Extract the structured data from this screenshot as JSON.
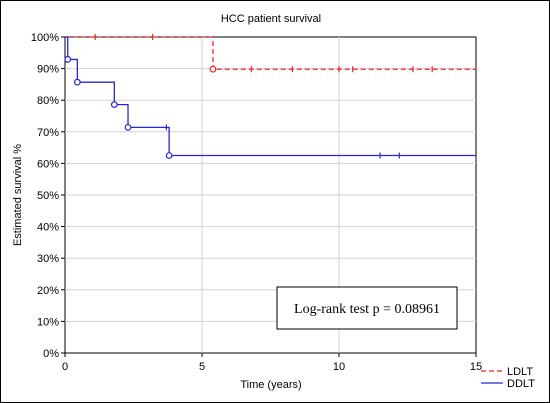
{
  "chart_data": {
    "type": "line",
    "title": "HCC patient survival",
    "xlabel": "Time (years)",
    "ylabel": "Estimated survival %",
    "xlim": [
      0,
      15
    ],
    "ylim": [
      0,
      100
    ],
    "x_ticks": [
      0,
      5,
      10,
      15
    ],
    "x_tick_labels": [
      "0",
      "5",
      "10",
      "15"
    ],
    "y_ticks": [
      0,
      10,
      20,
      30,
      40,
      50,
      60,
      70,
      80,
      90,
      100
    ],
    "y_tick_labels": [
      "0%",
      "10%",
      "20%",
      "30%",
      "40%",
      "50%",
      "60%",
      "70%",
      "80%",
      "90%",
      "100%"
    ],
    "grid": true,
    "legend_position": "bottom-right",
    "annotation": "Log-rank test p = 0.08961",
    "series": [
      {
        "name": "LDLT",
        "color": "#e8242a",
        "dash": "dashed",
        "x": [
          0,
          5.4,
          5.4,
          15
        ],
        "y": [
          100,
          100,
          89.8,
          89.8
        ],
        "events": [
          {
            "x": 5.4,
            "y": 89.8
          }
        ],
        "censored": [
          {
            "x": 1.1,
            "y": 100
          },
          {
            "x": 3.2,
            "y": 100
          },
          {
            "x": 6.8,
            "y": 89.8
          },
          {
            "x": 8.3,
            "y": 89.8
          },
          {
            "x": 10.0,
            "y": 89.8
          },
          {
            "x": 10.5,
            "y": 89.8
          },
          {
            "x": 12.7,
            "y": 89.8
          },
          {
            "x": 13.4,
            "y": 89.8
          }
        ]
      },
      {
        "name": "DDLT",
        "color": "#2828d2",
        "dash": "solid",
        "x": [
          0,
          0.1,
          0.1,
          0.45,
          0.45,
          1.8,
          1.8,
          2.3,
          2.3,
          3.8,
          3.8,
          15
        ],
        "y": [
          100,
          100,
          92.9,
          92.9,
          85.7,
          85.7,
          78.6,
          78.6,
          71.4,
          71.4,
          62.5,
          62.5
        ],
        "events": [
          {
            "x": 0.1,
            "y": 92.9
          },
          {
            "x": 0.45,
            "y": 85.7
          },
          {
            "x": 1.8,
            "y": 78.6
          },
          {
            "x": 2.3,
            "y": 71.4
          },
          {
            "x": 3.8,
            "y": 62.5
          }
        ],
        "censored": [
          {
            "x": 3.7,
            "y": 71.4
          },
          {
            "x": 11.5,
            "y": 62.5
          },
          {
            "x": 12.2,
            "y": 62.5
          }
        ]
      }
    ]
  }
}
